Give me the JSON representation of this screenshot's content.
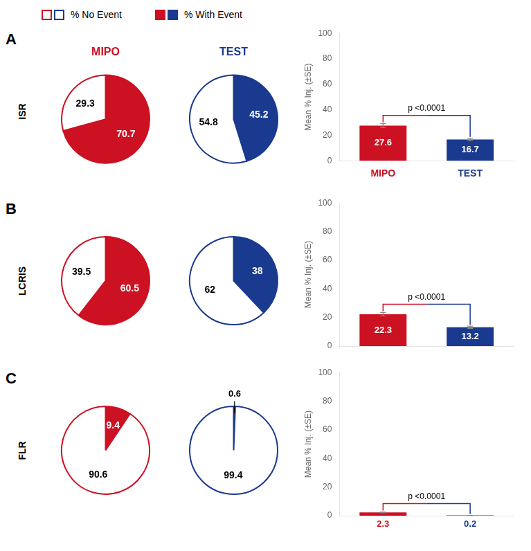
{
  "chart_data": [
    {
      "type": "pie",
      "title": "MIPO",
      "annotations": [
        "A",
        "ISR"
      ],
      "categories": [
        "% With Event",
        "% No Event"
      ],
      "values": [
        70.7,
        29.3
      ],
      "colors": [
        "#CC1122",
        "#FFFFFF"
      ],
      "data_labels": true,
      "legend": "top"
    },
    {
      "type": "pie",
      "title": "TEST",
      "categories": [
        "% With Event",
        "% No Event"
      ],
      "values": [
        45.2,
        54.8
      ],
      "colors": [
        "#1A3A8F",
        "#FFFFFF"
      ],
      "data_labels": true
    },
    {
      "type": "bar",
      "categories": [
        "MIPO",
        "TEST"
      ],
      "values": [
        27.6,
        16.7
      ],
      "errors": [
        1.5,
        1.0
      ],
      "colors": [
        "#CC1122",
        "#1A3A8F"
      ],
      "ylabel": "Mean % Inj. (±SE)",
      "ylim": [
        0,
        100
      ],
      "yticks": [
        0,
        20,
        40,
        60,
        80,
        100
      ],
      "grid": false,
      "data_labels": true,
      "annotations": [
        "p <0.0001"
      ]
    },
    {
      "type": "pie",
      "annotations": [
        "B",
        "LCRIS"
      ],
      "categories": [
        "% With Event",
        "% No Event"
      ],
      "values": [
        60.5,
        39.5
      ],
      "colors": [
        "#CC1122",
        "#FFFFFF"
      ],
      "data_labels": true
    },
    {
      "type": "pie",
      "categories": [
        "% With Event",
        "% No Event"
      ],
      "values": [
        38.0,
        62.0
      ],
      "colors": [
        "#1A3A8F",
        "#FFFFFF"
      ],
      "data_labels": true
    },
    {
      "type": "bar",
      "categories": [
        null,
        null
      ],
      "values": [
        22.3,
        13.2
      ],
      "errors": [
        1.2,
        0.8
      ],
      "colors": [
        "#CC1122",
        "#1A3A8F"
      ],
      "ylabel": "Mean % Inj. (±SE)",
      "ylim": [
        0,
        100
      ],
      "yticks": [
        0,
        20,
        40,
        60,
        80,
        100
      ],
      "grid": false,
      "data_labels": true,
      "tick_labels": "y",
      "annotations": [
        "p <0.0001"
      ]
    },
    {
      "type": "pie",
      "annotations": [
        "C",
        "FLR"
      ],
      "categories": [
        "% With Event",
        "% No Event"
      ],
      "values": [
        9.4,
        90.6
      ],
      "colors": [
        "#CC1122",
        "#FFFFFF"
      ],
      "data_labels": true
    },
    {
      "type": "pie",
      "categories": [
        "% With Event",
        "% No Event"
      ],
      "values": [
        0.6,
        99.4
      ],
      "colors": [
        "#1A3A8F",
        "#FFFFFF"
      ],
      "data_labels": true
    },
    {
      "type": "bar",
      "categories": [
        null,
        null
      ],
      "values": [
        2.3,
        0.2
      ],
      "errors": [
        0.3,
        0.05
      ],
      "colors": [
        "#CC1122",
        "#1A3A8F"
      ],
      "ylabel": "Mean % Inj. (±SE)",
      "ylim": [
        0,
        100
      ],
      "yticks": [
        0,
        20,
        40,
        60,
        80,
        100
      ],
      "grid": false,
      "data_labels": true,
      "tick_labels": "y",
      "annotations": [
        "p <0.0001"
      ]
    }
  ]
}
